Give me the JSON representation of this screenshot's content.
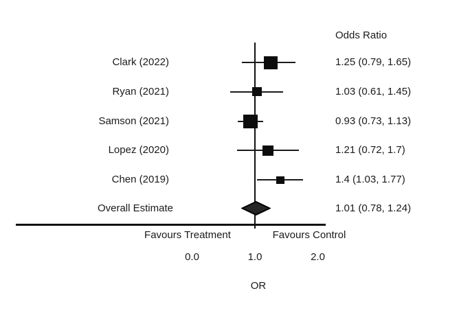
{
  "chart_data": {
    "type": "forest",
    "column_header": "Odds Ratio",
    "studies": [
      {
        "label": "Clark (2022)",
        "or": 1.25,
        "ci_low": 0.79,
        "ci_high": 1.65,
        "value_text": "1.25 (0.79, 1.65)",
        "marker_size": 20
      },
      {
        "label": "Ryan (2021)",
        "or": 1.03,
        "ci_low": 0.61,
        "ci_high": 1.45,
        "value_text": "1.03 (0.61, 1.45)",
        "marker_size": 14
      },
      {
        "label": "Samson (2021)",
        "or": 0.93,
        "ci_low": 0.73,
        "ci_high": 1.13,
        "value_text": "0.93 (0.73, 1.13)",
        "marker_size": 21
      },
      {
        "label": "Lopez (2020)",
        "or": 1.21,
        "ci_low": 0.72,
        "ci_high": 1.7,
        "value_text": "1.21 (0.72, 1.7)",
        "marker_size": 16
      },
      {
        "label": "Chen (2019)",
        "or": 1.4,
        "ci_low": 1.03,
        "ci_high": 1.77,
        "value_text": "1.4 (1.03, 1.77)",
        "marker_size": 12
      }
    ],
    "overall": {
      "label": "Overall Estimate",
      "or": 1.01,
      "ci_low": 0.78,
      "ci_high": 1.24,
      "value_text": "1.01 (0.78, 1.24)"
    },
    "xlabel": "OR",
    "xlim": [
      0.0,
      2.0
    ],
    "reference_line": 1.0,
    "x_ticks": [
      {
        "value": 0.0,
        "label": "0.0"
      },
      {
        "value": 1.0,
        "label": "1.0"
      },
      {
        "value": 2.0,
        "label": "2.0"
      }
    ],
    "axis_annotations": {
      "left": "Favours Treatment",
      "right": "Favours Control"
    },
    "legend": "none",
    "grid": false,
    "colors": {
      "marker": "#0d0d0d",
      "ci_line": "#1a1a1a",
      "diamond_fill": "#262626",
      "diamond_stroke": "#000000",
      "axis": "#111111",
      "text": "#1a1a1a",
      "background": "#ffffff"
    }
  }
}
